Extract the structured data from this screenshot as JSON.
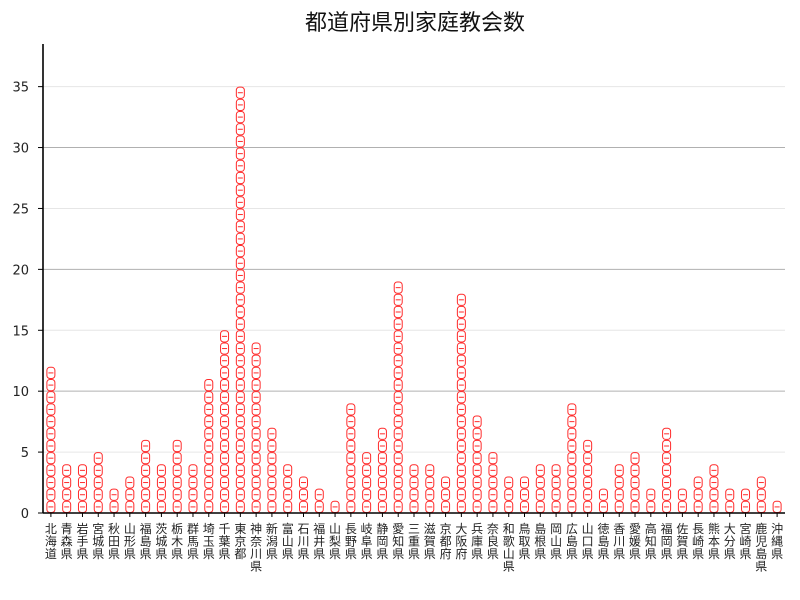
{
  "chart_data": {
    "type": "bar",
    "title": "都道府県別家庭教会数",
    "xlabel": "",
    "ylabel": "",
    "ylim": [
      0,
      38.5
    ],
    "yticks": [
      0,
      5,
      10,
      15,
      20,
      25,
      30,
      35
    ],
    "grid": "horizontal",
    "mark": "stacked red bell/drum icons, one per unit",
    "categories": [
      "北海道",
      "青森県",
      "岩手県",
      "宮城県",
      "秋田県",
      "山形県",
      "福島県",
      "茨城県",
      "栃木県",
      "群馬県",
      "埼玉県",
      "千葉県",
      "東京都",
      "神奈川県",
      "新潟県",
      "富山県",
      "石川県",
      "福井県",
      "山梨県",
      "長野県",
      "岐阜県",
      "静岡県",
      "愛知県",
      "三重県",
      "滋賀県",
      "京都府",
      "大阪府",
      "兵庫県",
      "奈良県",
      "和歌山県",
      "鳥取県",
      "島根県",
      "岡山県",
      "広島県",
      "山口県",
      "徳島県",
      "香川県",
      "愛媛県",
      "高知県",
      "福岡県",
      "佐賀県",
      "長崎県",
      "熊本県",
      "大分県",
      "宮崎県",
      "鹿児島県",
      "沖縄県"
    ],
    "values": [
      12,
      4,
      4,
      5,
      2,
      3,
      6,
      4,
      6,
      4,
      11,
      15,
      35,
      14,
      7,
      4,
      3,
      2,
      1,
      9,
      5,
      7,
      19,
      4,
      4,
      3,
      18,
      8,
      5,
      3,
      3,
      4,
      4,
      9,
      6,
      2,
      4,
      5,
      2,
      7,
      2,
      3,
      4,
      2,
      2,
      3,
      1
    ]
  },
  "colors": {
    "mark": "#ff2a2a",
    "axis": "#000000",
    "grid": "#b0b0b0"
  }
}
